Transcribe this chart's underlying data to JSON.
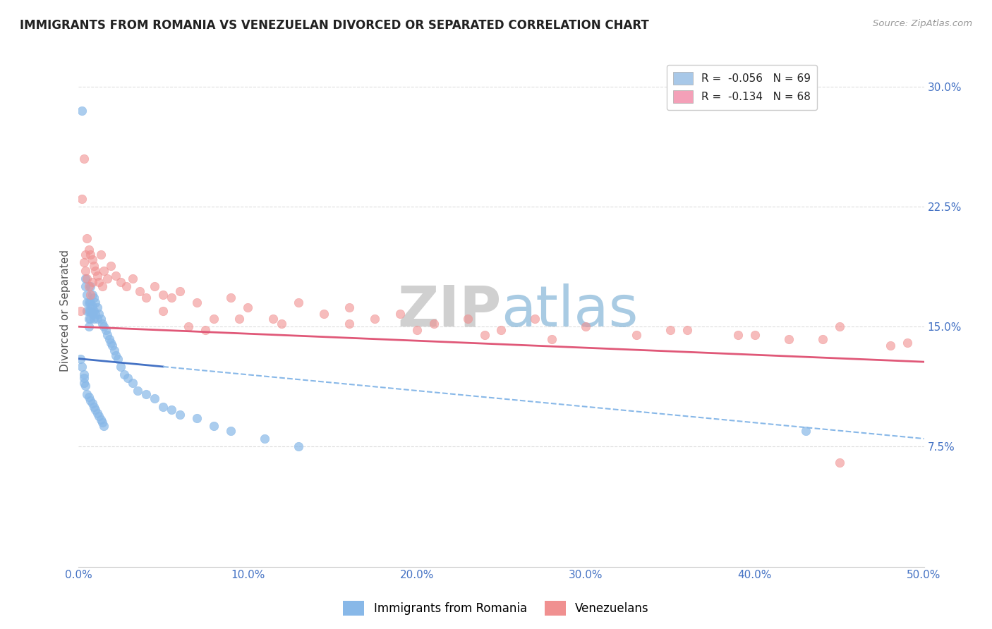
{
  "title": "IMMIGRANTS FROM ROMANIA VS VENEZUELAN DIVORCED OR SEPARATED CORRELATION CHART",
  "source": "Source: ZipAtlas.com",
  "ylabel": "Divorced or Separated",
  "xlim": [
    0.0,
    0.5
  ],
  "ylim": [
    0.0,
    0.32
  ],
  "xticks": [
    0.0,
    0.1,
    0.2,
    0.3,
    0.4,
    0.5
  ],
  "xticklabels": [
    "0.0%",
    "10.0%",
    "20.0%",
    "30.0%",
    "40.0%",
    "50.0%"
  ],
  "yticks_right": [
    0.075,
    0.15,
    0.225,
    0.3
  ],
  "yticklabels_right": [
    "7.5%",
    "15.0%",
    "22.5%",
    "30.0%"
  ],
  "legend_label1": "R =  -0.056   N = 69",
  "legend_label2": "R =  -0.134   N = 68",
  "legend_color1": "#A8C8E8",
  "legend_color2": "#F4A0B8",
  "series1_color": "#88B8E8",
  "series2_color": "#F09090",
  "trendline1_solid_color": "#4472C4",
  "trendline1_dash_color": "#88B8E8",
  "trendline2_color": "#E05878",
  "watermark_color": "#DEDEDE",
  "background_color": "#FFFFFF",
  "grid_color": "#DDDDDD",
  "title_color": "#222222",
  "axis_label_color": "#555555",
  "tick_label_color": "#4472C4",
  "scatter1_x": [
    0.001,
    0.002,
    0.002,
    0.003,
    0.003,
    0.003,
    0.004,
    0.004,
    0.004,
    0.005,
    0.005,
    0.005,
    0.005,
    0.006,
    0.006,
    0.006,
    0.006,
    0.006,
    0.007,
    0.007,
    0.007,
    0.007,
    0.007,
    0.008,
    0.008,
    0.008,
    0.008,
    0.009,
    0.009,
    0.009,
    0.009,
    0.01,
    0.01,
    0.01,
    0.011,
    0.011,
    0.011,
    0.012,
    0.012,
    0.013,
    0.013,
    0.014,
    0.014,
    0.015,
    0.015,
    0.016,
    0.017,
    0.018,
    0.019,
    0.02,
    0.021,
    0.022,
    0.023,
    0.025,
    0.027,
    0.029,
    0.032,
    0.035,
    0.04,
    0.045,
    0.05,
    0.055,
    0.06,
    0.07,
    0.08,
    0.09,
    0.11,
    0.13,
    0.43
  ],
  "scatter1_y": [
    0.13,
    0.285,
    0.125,
    0.12,
    0.118,
    0.115,
    0.18,
    0.175,
    0.113,
    0.17,
    0.165,
    0.16,
    0.108,
    0.165,
    0.16,
    0.155,
    0.15,
    0.106,
    0.175,
    0.165,
    0.16,
    0.155,
    0.104,
    0.17,
    0.163,
    0.158,
    0.102,
    0.168,
    0.16,
    0.155,
    0.1,
    0.165,
    0.158,
    0.098,
    0.162,
    0.155,
    0.096,
    0.158,
    0.094,
    0.155,
    0.092,
    0.152,
    0.09,
    0.15,
    0.088,
    0.148,
    0.145,
    0.142,
    0.14,
    0.138,
    0.135,
    0.132,
    0.13,
    0.125,
    0.12,
    0.118,
    0.115,
    0.11,
    0.108,
    0.105,
    0.1,
    0.098,
    0.095,
    0.093,
    0.088,
    0.085,
    0.08,
    0.075,
    0.085
  ],
  "scatter2_x": [
    0.001,
    0.002,
    0.003,
    0.003,
    0.004,
    0.004,
    0.005,
    0.005,
    0.006,
    0.006,
    0.007,
    0.007,
    0.008,
    0.008,
    0.009,
    0.01,
    0.011,
    0.012,
    0.013,
    0.014,
    0.015,
    0.017,
    0.019,
    0.022,
    0.025,
    0.028,
    0.032,
    0.036,
    0.04,
    0.045,
    0.05,
    0.055,
    0.06,
    0.07,
    0.08,
    0.09,
    0.1,
    0.115,
    0.13,
    0.145,
    0.16,
    0.175,
    0.19,
    0.21,
    0.23,
    0.25,
    0.27,
    0.3,
    0.33,
    0.36,
    0.39,
    0.42,
    0.45,
    0.49,
    0.16,
    0.2,
    0.24,
    0.28,
    0.35,
    0.4,
    0.44,
    0.48,
    0.05,
    0.075,
    0.095,
    0.12,
    0.065,
    0.45
  ],
  "scatter2_y": [
    0.16,
    0.23,
    0.255,
    0.19,
    0.195,
    0.185,
    0.205,
    0.18,
    0.198,
    0.175,
    0.195,
    0.17,
    0.192,
    0.178,
    0.188,
    0.185,
    0.182,
    0.178,
    0.195,
    0.175,
    0.185,
    0.18,
    0.188,
    0.182,
    0.178,
    0.175,
    0.18,
    0.172,
    0.168,
    0.175,
    0.17,
    0.168,
    0.172,
    0.165,
    0.155,
    0.168,
    0.162,
    0.155,
    0.165,
    0.158,
    0.162,
    0.155,
    0.158,
    0.152,
    0.155,
    0.148,
    0.155,
    0.15,
    0.145,
    0.148,
    0.145,
    0.142,
    0.15,
    0.14,
    0.152,
    0.148,
    0.145,
    0.142,
    0.148,
    0.145,
    0.142,
    0.138,
    0.16,
    0.148,
    0.155,
    0.152,
    0.15,
    0.065
  ],
  "trend1_x0": 0.0,
  "trend1_x1": 0.5,
  "trend1_y0": 0.13,
  "trend1_y1": 0.08,
  "trend1_solid_x1": 0.05,
  "trend2_x0": 0.0,
  "trend2_x1": 0.5,
  "trend2_y0": 0.15,
  "trend2_y1": 0.128
}
